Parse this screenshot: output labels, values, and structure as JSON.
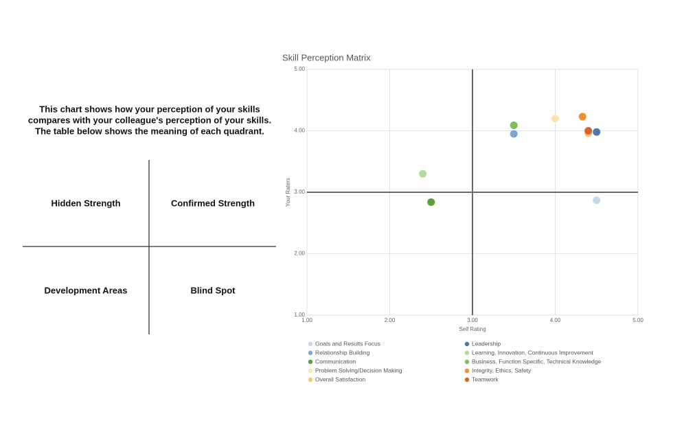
{
  "intro": [
    "This chart shows how your perception of your skills",
    "compares with your colleague's perception of your skills.",
    "The table below shows the meaning of each quadrant."
  ],
  "quadrants": [
    "Hidden Strength",
    "Confirmed Strength",
    "Development Areas",
    "Blind Spot"
  ],
  "chart_data": {
    "type": "scatter",
    "title": "Skill Perception Matrix",
    "x_label": "Self Rating",
    "y_label": "Your Raters",
    "xlim": [
      1,
      5
    ],
    "ylim": [
      1,
      5
    ],
    "xticks": [
      {
        "value": 1,
        "label": "1.00"
      },
      {
        "value": 2,
        "label": "2.00"
      },
      {
        "value": 3,
        "label": "3.00"
      },
      {
        "value": 4,
        "label": "4.00"
      },
      {
        "value": 5,
        "label": "5.00"
      }
    ],
    "yticks": [
      {
        "value": 1,
        "label": "1.00"
      },
      {
        "value": 2,
        "label": "2.00"
      },
      {
        "value": 3,
        "label": "3.00"
      },
      {
        "value": 4,
        "label": "4.00"
      },
      {
        "value": 5,
        "label": "5.00"
      }
    ],
    "crosshair": [
      3,
      3
    ],
    "grid": true,
    "series": [
      {
        "name": "Goals and Results Focus",
        "color": "#c6d9ec",
        "x": [
          4.5
        ],
        "values": [
          2.87
        ]
      },
      {
        "name": "Leadership",
        "color": "#4e79a7",
        "x": [
          4.5
        ],
        "values": [
          3.98
        ]
      },
      {
        "name": "Relationship Building",
        "color": "#7ea6d4",
        "x": [
          3.5
        ],
        "values": [
          3.95
        ]
      },
      {
        "name": "Learning, Innovation, Continuous Improvement",
        "color": "#b5d99c",
        "x": [
          2.4
        ],
        "values": [
          3.3
        ]
      },
      {
        "name": "Communication",
        "color": "#5c9e3a",
        "x": [
          2.5
        ],
        "values": [
          2.84
        ]
      },
      {
        "name": "Business, Function Specific, Technical Knowledge",
        "color": "#7cc05a",
        "x": [
          3.5
        ],
        "values": [
          4.09
        ]
      },
      {
        "name": "Problem Solving/Decision Making",
        "color": "#fde5b0",
        "x": [
          4.0
        ],
        "values": [
          4.2
        ]
      },
      {
        "name": "Integrity, Ethics, Safety",
        "color": "#f28e2b",
        "x": [
          4.33
        ],
        "values": [
          4.23
        ]
      },
      {
        "name": "Overall Satisfaction",
        "color": "#f7c47a",
        "x": [
          4.4
        ],
        "values": [
          3.96
        ]
      },
      {
        "name": "Teamwork",
        "color": "#d9622b",
        "x": [
          4.4
        ],
        "values": [
          4.0
        ]
      }
    ]
  }
}
